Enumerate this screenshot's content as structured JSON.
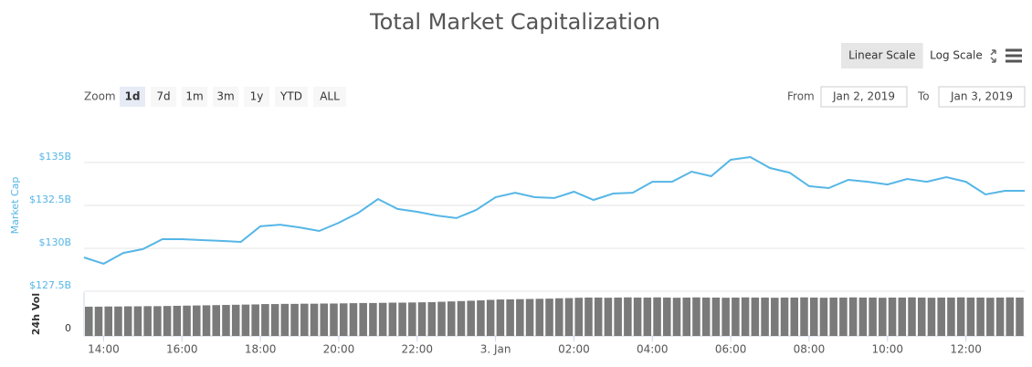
{
  "controls": {
    "scales": [
      "Linear Scale",
      "Log Scale"
    ],
    "active_scale": 0,
    "zoom_label": "Zoom",
    "zoom_options": [
      "1d",
      "7d",
      "1m",
      "3m",
      "1y",
      "YTD",
      "ALL"
    ],
    "active_zoom": 0,
    "from_label": "From",
    "from": "Jan 2, 2019",
    "to_label": "To",
    "to": "Jan 3, 2019"
  },
  "chart_data": [
    {
      "type": "line",
      "title": "Total Market Capitalization",
      "ylabel": "Market Cap",
      "color": "#55b6e6",
      "grid": true,
      "xlim": [
        13.5,
        37.5
      ],
      "ylim": [
        127.5,
        137.5
      ],
      "yticks": [
        {
          "value": 127.5,
          "label": "$127.5B"
        },
        {
          "value": 130,
          "label": "$130B"
        },
        {
          "value": 132.5,
          "label": "$132.5B"
        },
        {
          "value": 135,
          "label": "$135B"
        }
      ],
      "x": [
        13.5,
        14,
        14.5,
        15,
        15.5,
        16,
        16.5,
        17,
        17.5,
        18,
        18.5,
        19,
        19.5,
        20,
        20.5,
        21,
        21.5,
        22,
        22.5,
        23,
        23.5,
        24,
        24.5,
        25,
        25.5,
        26,
        26.5,
        27,
        27.5,
        28,
        28.5,
        29,
        29.5,
        30,
        30.5,
        31,
        31.5,
        32,
        32.5,
        33,
        33.5,
        34,
        34.5,
        35,
        35.5,
        36,
        36.5,
        37,
        37.5
      ],
      "values": [
        129.47,
        129.1,
        129.73,
        129.95,
        130.53,
        130.53,
        130.48,
        130.43,
        130.37,
        131.28,
        131.38,
        131.22,
        131.01,
        131.49,
        132.07,
        132.87,
        132.29,
        132.13,
        131.91,
        131.76,
        132.23,
        132.98,
        133.24,
        132.98,
        132.93,
        133.3,
        132.82,
        133.19,
        133.24,
        133.88,
        133.88,
        134.47,
        134.2,
        135.16,
        135.32,
        134.68,
        134.41,
        133.62,
        133.51,
        133.99,
        133.88,
        133.72,
        134.04,
        133.88,
        134.15,
        133.88,
        133.14,
        133.35,
        133.35
      ]
    },
    {
      "type": "bar",
      "ylabel": "24h Vol",
      "color": "#7a7a7a",
      "xlim": [
        13.5,
        37.5
      ],
      "ylim": [
        0,
        25
      ],
      "yticks": [
        0
      ],
      "xticks": [
        {
          "value": 14,
          "label": "14:00"
        },
        {
          "value": 16,
          "label": "16:00"
        },
        {
          "value": 18,
          "label": "18:00"
        },
        {
          "value": 20,
          "label": "20:00"
        },
        {
          "value": 22,
          "label": "22:00"
        },
        {
          "value": 24,
          "label": "3. Jan"
        },
        {
          "value": 26,
          "label": "02:00"
        },
        {
          "value": 28,
          "label": "04:00"
        },
        {
          "value": 30,
          "label": "06:00"
        },
        {
          "value": 32,
          "label": "08:00"
        },
        {
          "value": 34,
          "label": "10:00"
        },
        {
          "value": 36,
          "label": "12:00"
        }
      ],
      "x": [
        13.5,
        13.75,
        14,
        14.25,
        14.5,
        14.75,
        15,
        15.25,
        15.5,
        15.75,
        16,
        16.25,
        16.5,
        16.75,
        17,
        17.25,
        17.5,
        17.75,
        18,
        18.25,
        18.5,
        18.75,
        19,
        19.25,
        19.5,
        19.75,
        20,
        20.25,
        20.5,
        20.75,
        21,
        21.25,
        21.5,
        21.75,
        22,
        22.25,
        22.5,
        22.75,
        23,
        23.25,
        23.5,
        23.75,
        24,
        24.25,
        24.5,
        24.75,
        25,
        25.25,
        25.5,
        25.75,
        26,
        26.25,
        26.5,
        26.75,
        27,
        27.25,
        27.5,
        27.75,
        28,
        28.25,
        28.5,
        28.75,
        29,
        29.25,
        29.5,
        29.75,
        30,
        30.25,
        30.5,
        30.75,
        31,
        31.25,
        31.5,
        31.75,
        32,
        32.25,
        32.5,
        32.75,
        33,
        33.25,
        33.5,
        33.75,
        34,
        34.25,
        34.5,
        34.75,
        35,
        35.25,
        35.5,
        35.75,
        36,
        36.25,
        36.5,
        36.75,
        37,
        37.25
      ],
      "values": [
        16.7,
        16.7,
        16.8,
        16.8,
        16.9,
        16.9,
        17.0,
        17.0,
        17.1,
        17.2,
        17.3,
        17.4,
        17.5,
        17.6,
        17.7,
        17.8,
        17.9,
        18.0,
        18.2,
        18.2,
        18.3,
        18.3,
        18.4,
        18.4,
        18.5,
        18.5,
        18.6,
        18.7,
        18.8,
        18.8,
        18.9,
        19.0,
        19.0,
        19.1,
        19.2,
        19.3,
        19.5,
        19.7,
        19.9,
        20.1,
        20.3,
        20.6,
        20.8,
        20.9,
        21.0,
        21.1,
        21.2,
        21.3,
        21.5,
        21.6,
        21.8,
        21.9,
        21.9,
        21.8,
        21.9,
        22.0,
        21.9,
        21.9,
        22.0,
        21.9,
        21.8,
        21.9,
        22.0,
        21.9,
        21.9,
        21.8,
        21.9,
        22.0,
        21.9,
        21.9,
        21.8,
        21.9,
        21.9,
        22.0,
        21.9,
        21.8,
        21.9,
        21.9,
        22.0,
        21.9,
        21.9,
        21.8,
        21.9,
        21.9,
        22.0,
        21.9,
        21.8,
        21.9,
        21.9,
        22.0,
        21.9,
        21.9,
        21.8,
        21.9,
        22.0,
        21.9
      ]
    }
  ]
}
